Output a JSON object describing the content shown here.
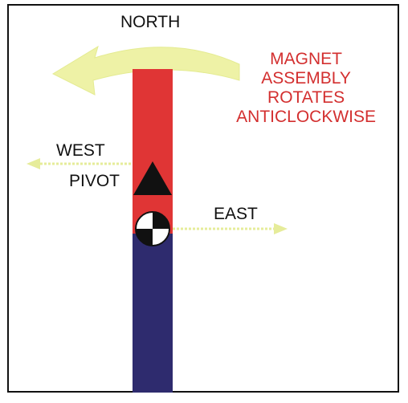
{
  "labels": {
    "north": "NORTH",
    "west": "WEST",
    "pivot": "PIVOT",
    "east": "EAST"
  },
  "caption": {
    "lines": [
      "MAGNET",
      "ASSEMBLY",
      "ROTATES",
      "ANTICLOCKWISE"
    ],
    "color": "#d32f2f"
  },
  "colors": {
    "north_pole": "#e03535",
    "south_pole": "#2e2b6e",
    "arrow": "#eef2a6",
    "text": "#111111"
  },
  "icons": {
    "pivot": "black-triangle-icon",
    "center_mark": "quadrant-circle-icon",
    "rotation": "curved-arrow-icon"
  }
}
